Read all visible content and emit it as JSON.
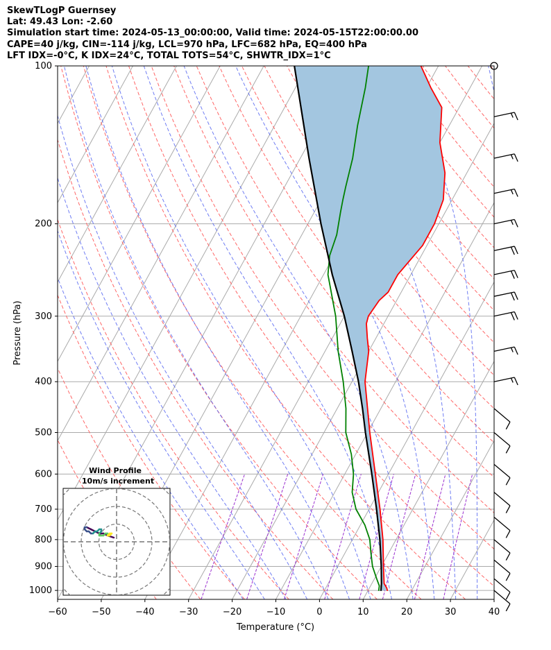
{
  "header": {
    "line1": "SkewTLogP Guernsey",
    "line2": "Lat: 49.43   Lon: -2.60",
    "line3": "Simulation start time: 2024-05-13_00:00:00, Valid time: 2024-05-15T22:00:00.00",
    "line4": "CAPE=40 j/kg, CIN=-114 j/kg, LCL=970 hPa, LFC=682 hPa, EQ=400 hPa",
    "line5": "LFT IDX=-0°C, K IDX=24°C, TOTAL TOTS=54°C, SHWTR_IDX=1°C"
  },
  "chart_data": {
    "type": "skewt",
    "xlabel": "Temperature (°C)",
    "ylabel": "Pressure (hPa)",
    "xlim": [
      -60,
      40
    ],
    "ylim": [
      1040,
      100
    ],
    "x_ticks": [
      -60,
      -50,
      -40,
      -30,
      -20,
      -10,
      0,
      10,
      20,
      30,
      40
    ],
    "x_tick_labels": [
      "−60",
      "−50",
      "−40",
      "−30",
      "−20",
      "−10",
      "0",
      "10",
      "20",
      "30",
      "40"
    ],
    "y_ticks": [
      1000,
      900,
      800,
      700,
      600,
      500,
      400,
      300,
      200,
      100
    ],
    "y_tick_labels": [
      "1000",
      "900",
      "800",
      "700",
      "600",
      "500",
      "400",
      "300",
      "200",
      "100"
    ],
    "series": [
      {
        "name": "temperature",
        "color": "#ff0000",
        "points": [
          [
            1002,
            14.5
          ],
          [
            990,
            14
          ],
          [
            970,
            12.8
          ],
          [
            900,
            10.5
          ],
          [
            800,
            7
          ],
          [
            700,
            2.5
          ],
          [
            600,
            -3
          ],
          [
            500,
            -9.5
          ],
          [
            400,
            -17
          ],
          [
            350,
            -20
          ],
          [
            330,
            -22
          ],
          [
            310,
            -24
          ],
          [
            300,
            -24.5
          ],
          [
            280,
            -24
          ],
          [
            270,
            -23
          ],
          [
            250,
            -23
          ],
          [
            220,
            -21
          ],
          [
            200,
            -21
          ],
          [
            180,
            -22
          ],
          [
            160,
            -25
          ],
          [
            140,
            -30
          ],
          [
            120,
            -34
          ],
          [
            110,
            -39
          ],
          [
            100,
            -44
          ]
        ]
      },
      {
        "name": "dewpoint",
        "color": "#008000",
        "points": [
          [
            1002,
            12.5
          ],
          [
            980,
            12
          ],
          [
            950,
            10.5
          ],
          [
            900,
            8
          ],
          [
            850,
            6
          ],
          [
            800,
            4
          ],
          [
            750,
            1
          ],
          [
            700,
            -3
          ],
          [
            650,
            -6
          ],
          [
            600,
            -8
          ],
          [
            550,
            -11
          ],
          [
            500,
            -15
          ],
          [
            450,
            -18
          ],
          [
            400,
            -22
          ],
          [
            350,
            -27
          ],
          [
            300,
            -32
          ],
          [
            250,
            -39
          ],
          [
            230,
            -41
          ],
          [
            210,
            -42
          ],
          [
            190,
            -44
          ],
          [
            180,
            -45
          ],
          [
            170,
            -46
          ],
          [
            150,
            -48
          ],
          [
            130,
            -51
          ],
          [
            110,
            -54
          ],
          [
            100,
            -56
          ]
        ]
      },
      {
        "name": "parcel",
        "color": "#000000",
        "points": [
          [
            1002,
            13
          ],
          [
            970,
            12.2
          ],
          [
            900,
            10
          ],
          [
            800,
            6.3
          ],
          [
            700,
            1.7
          ],
          [
            600,
            -3.8
          ],
          [
            500,
            -10.5
          ],
          [
            450,
            -14.2
          ],
          [
            400,
            -18.5
          ],
          [
            350,
            -23.8
          ],
          [
            300,
            -30
          ],
          [
            250,
            -38
          ],
          [
            200,
            -47
          ],
          [
            150,
            -58
          ],
          [
            100,
            -73
          ]
        ]
      }
    ],
    "cape_fill_color": "#a3c6e0",
    "isotherm_color": "#aaaaaa",
    "dry_adiabat_color": "#ff6666",
    "moist_adiabat_color": "#4b5cf0",
    "mixing_ratio_color": "#9b30d0",
    "wind_barbs": [
      {
        "p": 100,
        "speed": 0
      },
      {
        "p": 125,
        "speed": 15
      },
      {
        "p": 150,
        "speed": 15
      },
      {
        "p": 175,
        "speed": 15
      },
      {
        "p": 200,
        "speed": 15
      },
      {
        "p": 225,
        "speed": 20
      },
      {
        "p": 250,
        "speed": 20
      },
      {
        "p": 275,
        "speed": 20
      },
      {
        "p": 300,
        "speed": 20
      },
      {
        "p": 350,
        "speed": 15
      },
      {
        "p": 400,
        "speed": 15
      },
      {
        "p": 450,
        "speed": 10
      },
      {
        "p": 500,
        "speed": 10
      },
      {
        "p": 575,
        "speed": 10
      },
      {
        "p": 650,
        "speed": 10
      },
      {
        "p": 725,
        "speed": 10
      },
      {
        "p": 800,
        "speed": 10
      },
      {
        "p": 875,
        "speed": 10
      },
      {
        "p": 950,
        "speed": 10
      },
      {
        "p": 1000,
        "speed": 10
      }
    ],
    "hodograph": {
      "title": "Wind Profile",
      "subtitle": "10m/s increment",
      "u": [
        2,
        -1,
        -3,
        -5,
        -7,
        -9,
        -11,
        -12,
        -12,
        -11,
        -10,
        -9,
        -8,
        -7,
        -6,
        -5,
        -4,
        -4,
        -5,
        -5,
        -4,
        -3,
        -2,
        -1,
        -1,
        0,
        1,
        0,
        -1,
        -1
      ],
      "v": [
        2,
        3,
        4,
        4,
        5,
        6,
        7,
        7,
        6,
        5,
        5,
        4,
        4,
        5,
        5,
        6,
        6,
        5,
        4,
        3,
        3,
        3,
        4,
        4,
        3,
        3,
        4,
        4,
        3,
        3
      ]
    }
  }
}
